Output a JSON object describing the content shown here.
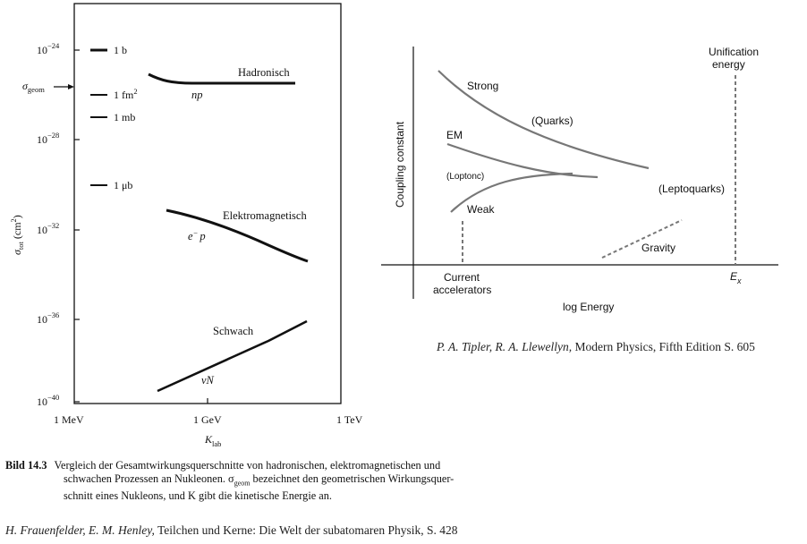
{
  "left_plot": {
    "y_axis_label": "σ_tot (cm²)",
    "y_axis_label_main": "σ",
    "y_axis_label_sub": "tot",
    "y_axis_label_unit": "(cm",
    "y_axis_label_sup": "2",
    "y_axis_label_close": ")",
    "y_ticks": [
      {
        "base": "10",
        "exp": "−24"
      },
      {
        "base": "10",
        "exp": "−28"
      },
      {
        "base": "10",
        "exp": "−32"
      },
      {
        "base": "10",
        "exp": "−36"
      },
      {
        "base": "10",
        "exp": "−40"
      }
    ],
    "x_ticks": [
      "1 MeV",
      "1 GeV",
      "1 TeV"
    ],
    "x_axis_label_main": "K",
    "x_axis_label_sub": "lab",
    "sigma_geom_main": "σ",
    "sigma_geom_sub": "geom",
    "unit_markers": [
      {
        "label": "1 b"
      },
      {
        "label": "1 fm",
        "sup": "2"
      },
      {
        "label": "1 mb"
      },
      {
        "label": "1 μb"
      }
    ],
    "curves": [
      {
        "name": "Hadronisch",
        "process": "np"
      },
      {
        "name": "Elektromagnetisch",
        "process_a": "e",
        "process_sup": "−",
        "process_b": "p"
      },
      {
        "name": "Schwach",
        "process": "νN"
      }
    ]
  },
  "right_plot": {
    "y_axis_label": "Coupling constant",
    "x_axis_label": "log Energy",
    "labels": {
      "strong": "Strong",
      "quarks": "(Quarks)",
      "em": "EM",
      "loptonc": "(Loptonc)",
      "weak": "Weak",
      "leptoquarks": "(Leptoquarks)",
      "gravity": "Gravity",
      "current_1": "Current",
      "current_2": "accelerators",
      "unification_1": "Unification",
      "unification_2": "energy",
      "ex_main": "E",
      "ex_sub": "x"
    }
  },
  "caption": {
    "label": "Bild 14.3",
    "line1": "Vergleich der Gesamtwirkungsquerschnitte von hadronischen, elektromagnetischen und",
    "line2": "schwachen Prozessen an Nukleonen. σ",
    "line2_sub": "geom",
    "line2_rest": " bezeichnet den geometrischen Wirkungsquer-",
    "line3": "schnitt eines Nukleons, und K gibt die kinetische Energie an."
  },
  "credit_left": {
    "authors": "H. Frauenfelder, E. M. Henley,",
    "title": " Teilchen und Kerne: Die Welt der subatomaren Physik, S. 428"
  },
  "credit_right": {
    "authors": "P. A. Tipler, R. A. Llewellyn,",
    "title": " Modern Physics, Fifth Edition S. 605"
  }
}
